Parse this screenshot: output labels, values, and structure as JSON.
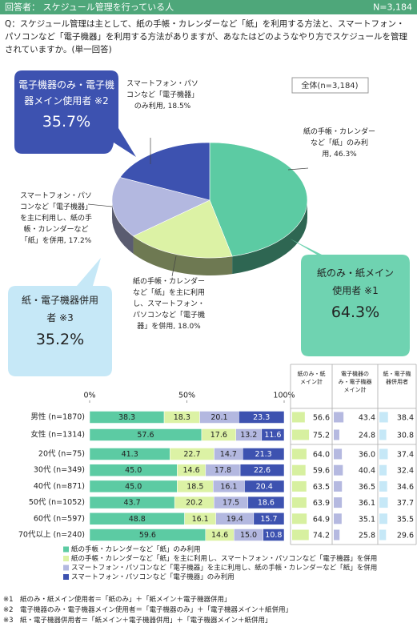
{
  "header": {
    "title": "回答者： スケジュール管理を行っている人",
    "n": "N=3,184"
  },
  "question": "Q：スケジュール管理は主として、紙の手帳・カレンダーなど「紙」を利用する方法と、スマートフォン・パソコンなど「電子機器」を利用する方法がありますが、あなたはどのようなやり方でスケジュールを管理されていますか。(単一回答)",
  "callouts": [
    {
      "text": "電子機器のみ・電子機器メイン使用者 ※2",
      "value": "35.7%"
    },
    {
      "text": "紙のみ・紙メイン使用者 ※1",
      "value": "64.3%"
    },
    {
      "text": "紙・電子機器併用者 ※3",
      "value": "35.2%"
    }
  ],
  "chart_data": [
    {
      "type": "pie",
      "subtitle": "全体(n=3,184)",
      "categories": [
        "紙の手帳・カレンダーなど「紙」のみ利用,",
        "紙の手帳・カレンダーなど「紙」を主に利用し、スマートフォン・パソコンなど「電子機器」を併用,",
        "スマートフォン・パソコンなど「電子機器」を主に利用し、紙の手帳・カレンダーなど「紙」を併用,",
        "スマートフォン・パソコンなど「電子機器」のみ利用,"
      ],
      "values": [
        46.3,
        18.0,
        17.2,
        18.5
      ],
      "value_labels": [
        "46.3%",
        "18.0%",
        "17.2%",
        "18.5%"
      ],
      "colors": [
        "#5ccba3",
        "#dcf2a5",
        "#b3b8e0",
        "#3d52b0"
      ]
    },
    {
      "type": "stacked-bar",
      "orientation": "horizontal",
      "categories": [
        "男性 (n=1870)",
        "女性 (n=1314)",
        "20代 (n=75)",
        "30代 (n=349)",
        "40代 (n=871)",
        "50代 (n=1052)",
        "60代 (n=597)",
        "70代以上 (n=240)"
      ],
      "xlim": [
        0,
        100
      ],
      "xticks": [
        {
          "value": 0,
          "label": "0%"
        },
        {
          "value": 50,
          "label": "50%"
        },
        {
          "value": 100,
          "label": "100%"
        }
      ],
      "grid": false,
      "series": [
        {
          "name": "紙の手帳・カレンダーなど「紙」のみ利用",
          "color": "#5ccba3",
          "values": [
            38.3,
            57.6,
            41.3,
            45.0,
            45.0,
            43.7,
            48.8,
            59.6
          ],
          "value_labels": [
            "38.3",
            "57.6",
            "41.3",
            "45.0",
            "45.0",
            "43.7",
            "48.8",
            "59.6"
          ]
        },
        {
          "name": "紙の手帳・カレンダーなど「紙」を主に利用し、スマートフォン・パソコンなど「電子機器」を併用",
          "color": "#dcf2a5",
          "values": [
            18.3,
            17.6,
            22.7,
            14.6,
            18.5,
            20.2,
            16.1,
            14.6
          ],
          "value_labels": [
            "18.3",
            "17.6",
            "22.7",
            "14.6",
            "18.5",
            "20.2",
            "16.1",
            "14.6"
          ]
        },
        {
          "name": "スマートフォン・パソコンなど「電子機器」を主に利用し、紙の手帳・カレンダーなど「紙」を併用",
          "color": "#b3b8e0",
          "values": [
            20.1,
            13.2,
            14.7,
            17.8,
            16.1,
            17.5,
            19.4,
            15.0
          ],
          "value_labels": [
            "20.1",
            "13.2",
            "14.7",
            "17.8",
            "16.1",
            "17.5",
            "19.4",
            "15.0"
          ]
        },
        {
          "name": "スマートフォン・パソコンなど「電子機器」のみ利用",
          "color": "#3d52b0",
          "values": [
            23.3,
            11.6,
            21.3,
            22.6,
            20.4,
            18.6,
            15.7,
            10.8
          ],
          "value_labels": [
            "23.3",
            "11.6",
            "21.3",
            "22.6",
            "20.4",
            "18.6",
            "15.7",
            "10.8"
          ]
        }
      ]
    },
    {
      "type": "table-bar",
      "series": [
        {
          "name": "紙のみ・紙メイン計",
          "color": "#d7f0a0",
          "values": [
            56.6,
            75.2,
            64.0,
            59.6,
            63.5,
            63.9,
            64.9,
            74.2
          ],
          "value_labels": [
            "56.6",
            "75.2",
            "64.0",
            "59.6",
            "63.5",
            "63.9",
            "64.9",
            "74.2"
          ]
        },
        {
          "name": "電子機器のみ・電子機器メイン計",
          "color": "#b5b9e0",
          "values": [
            43.4,
            24.8,
            36.0,
            40.4,
            36.5,
            36.1,
            35.1,
            25.8
          ],
          "value_labels": [
            "43.4",
            "24.8",
            "36.0",
            "40.4",
            "36.5",
            "36.1",
            "35.1",
            "25.8"
          ]
        },
        {
          "name": "紙・電子機器併用者",
          "color": "#c6e8f7",
          "values": [
            38.4,
            30.8,
            37.4,
            32.4,
            34.6,
            37.7,
            35.5,
            29.6
          ],
          "value_labels": [
            "38.4",
            "30.8",
            "37.4",
            "32.4",
            "34.6",
            "37.7",
            "35.5",
            "29.6"
          ]
        }
      ]
    }
  ],
  "footnotes": [
    "※1　紙のみ・紙メイン使用者＝「紙のみ」＋「紙メイン＋電子機器併用」",
    "※2　電子機器のみ・電子機器メイン使用者＝「電子機器のみ」＋「電子機器メイン＋紙併用」",
    "※3　紙・電子機器併用者＝「紙メイン＋電子機器併用」＋「電子機器メイン＋紙併用」"
  ]
}
